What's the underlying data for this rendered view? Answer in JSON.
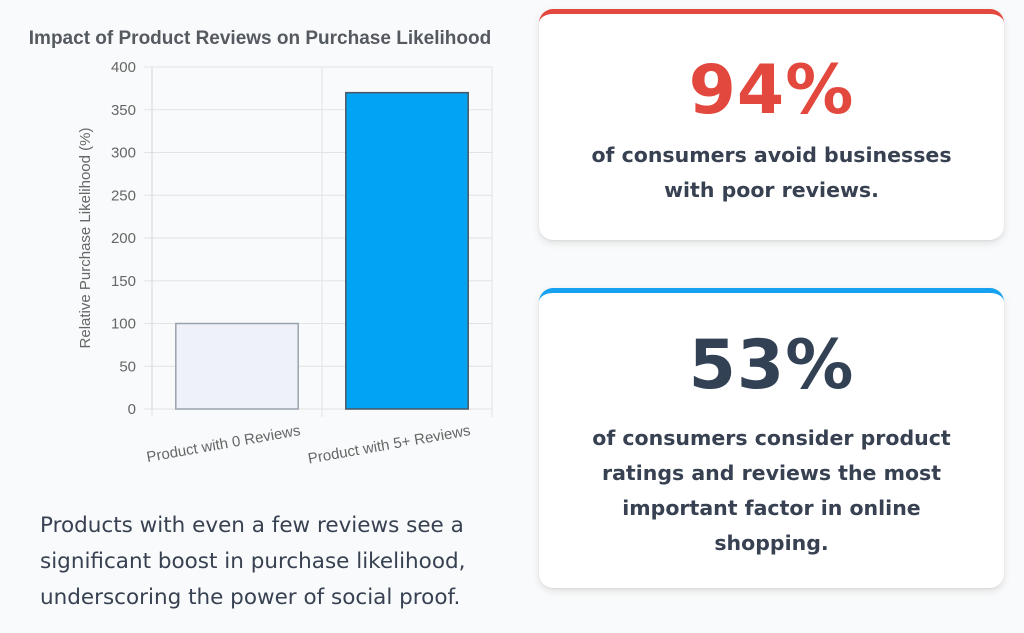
{
  "chart_data": {
    "type": "bar",
    "title": "Impact of Product Reviews on Purchase Likelihood",
    "ylabel": "Relative Purchase Likelihood (%)",
    "xlabel": "",
    "categories": [
      "Product with 0 Reviews",
      "Product with 5+ Reviews"
    ],
    "values": [
      100,
      370
    ],
    "ylim": [
      0,
      400
    ],
    "yticks": [
      0,
      50,
      100,
      150,
      200,
      250,
      300,
      350,
      400
    ],
    "bar_colors": [
      "#eef2f8",
      "#03a3f4"
    ],
    "bar_border_colors": [
      "#9aa3ad",
      "#4b5563"
    ],
    "grid": true,
    "legend": "none"
  },
  "caption": "Products with even a few reviews see a significant boost in purchase likelihood, underscoring the power of social proof.",
  "stats": [
    {
      "value": "94%",
      "description": "of consumers avoid businesses with poor reviews.",
      "accent": "#e2483d"
    },
    {
      "value": "53%",
      "description": "of consumers consider product ratings and reviews the most important factor in online shopping.",
      "accent": "#16a2f0"
    }
  ]
}
